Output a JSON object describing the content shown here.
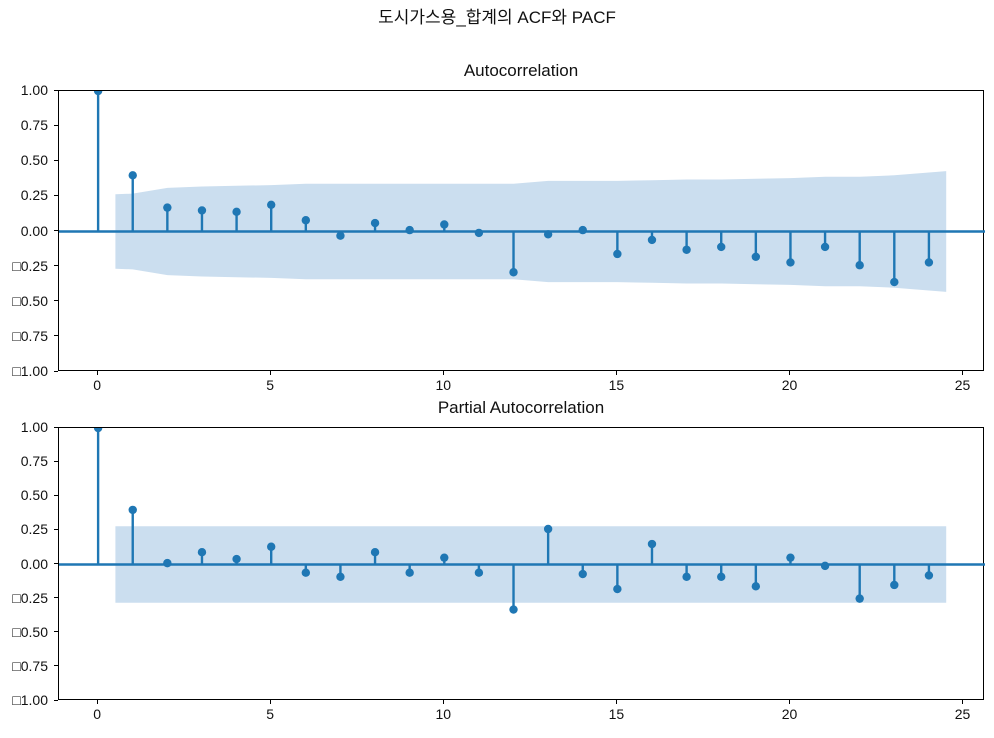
{
  "figure": {
    "suptitle": "도시가스용_합계의 ACF와 PACF"
  },
  "style": {
    "accent_color": "#1f77b4",
    "band_color": "#cbdeef",
    "spine_color": "#000000",
    "text_color": "#111111",
    "background": "#ffffff"
  },
  "axes": {
    "ylim": [
      -1.0,
      1.0
    ],
    "xlim": [
      -1.13,
      25.62
    ],
    "ytick_labels": [
      "1.00",
      "0.75",
      "0.50",
      "0.25",
      "0.00",
      "□0.25",
      "□0.50",
      "□0.75",
      "□1.00"
    ],
    "ytick_values": [
      1.0,
      0.75,
      0.5,
      0.25,
      0.0,
      -0.25,
      -0.5,
      -0.75,
      -1.0
    ],
    "xtick_labels": [
      "0",
      "5",
      "10",
      "15",
      "20",
      "25"
    ],
    "xtick_values": [
      0,
      5,
      10,
      15,
      20,
      25
    ],
    "grid": false
  },
  "chart_data": [
    {
      "type": "stem",
      "title": "Autocorrelation",
      "xlabel": "",
      "ylabel": "",
      "lags": [
        0,
        1,
        2,
        3,
        4,
        5,
        6,
        7,
        8,
        9,
        10,
        11,
        12,
        13,
        14,
        15,
        16,
        17,
        18,
        19,
        20,
        21,
        22,
        23,
        24
      ],
      "values": [
        1.0,
        0.4,
        0.17,
        0.15,
        0.14,
        0.19,
        0.08,
        -0.03,
        0.06,
        0.01,
        0.05,
        -0.01,
        -0.29,
        -0.02,
        0.01,
        -0.16,
        -0.06,
        -0.13,
        -0.11,
        -0.18,
        -0.22,
        -0.11,
        -0.24,
        -0.36,
        -0.22
      ],
      "confidence_band": {
        "symmetric": true,
        "x": [
          0.5,
          1,
          2,
          3,
          4,
          5,
          6,
          7,
          8,
          9,
          10,
          11,
          12,
          13,
          14,
          15,
          16,
          17,
          18,
          19,
          20,
          21,
          22,
          23,
          24,
          24.5
        ],
        "upper": [
          0.265,
          0.27,
          0.31,
          0.32,
          0.325,
          0.33,
          0.34,
          0.34,
          0.34,
          0.34,
          0.34,
          0.34,
          0.34,
          0.36,
          0.36,
          0.36,
          0.365,
          0.37,
          0.37,
          0.375,
          0.38,
          0.39,
          0.39,
          0.4,
          0.42,
          0.43
        ]
      }
    },
    {
      "type": "stem",
      "title": "Partial Autocorrelation",
      "xlabel": "",
      "ylabel": "",
      "lags": [
        0,
        1,
        2,
        3,
        4,
        5,
        6,
        7,
        8,
        9,
        10,
        11,
        12,
        13,
        14,
        15,
        16,
        17,
        18,
        19,
        20,
        21,
        22,
        23,
        24
      ],
      "values": [
        1.0,
        0.4,
        0.01,
        0.09,
        0.04,
        0.13,
        -0.06,
        -0.09,
        0.09,
        -0.06,
        0.05,
        -0.06,
        -0.33,
        0.26,
        -0.07,
        -0.18,
        0.15,
        -0.09,
        -0.09,
        -0.16,
        0.05,
        -0.01,
        -0.25,
        -0.15,
        -0.08
      ],
      "confidence_band": {
        "symmetric": true,
        "x": [
          0.5,
          24.5
        ],
        "upper": [
          0.28,
          0.28
        ]
      }
    }
  ]
}
